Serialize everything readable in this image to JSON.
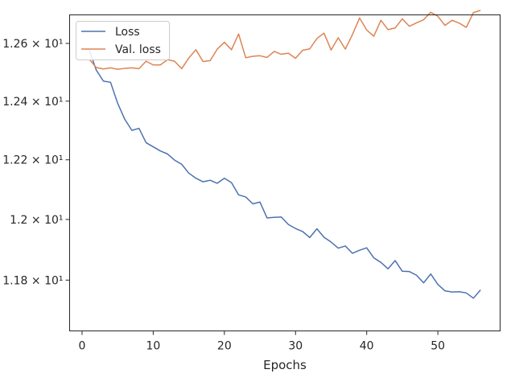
{
  "chart_data": {
    "type": "line",
    "title": "",
    "xlabel": "Epochs",
    "ylabel": "",
    "y_scale": "log",
    "xlim": [
      -1.75,
      58.75
    ],
    "ylim": [
      11.635,
      12.7
    ],
    "grid": false,
    "legend_position": "top-left",
    "x_ticks": [
      {
        "value": 0,
        "label": "0"
      },
      {
        "value": 10,
        "label": "10"
      },
      {
        "value": 20,
        "label": "20"
      },
      {
        "value": 30,
        "label": "30"
      },
      {
        "value": 40,
        "label": "40"
      },
      {
        "value": 50,
        "label": "50"
      }
    ],
    "y_ticks": [
      {
        "value": 11.8,
        "label": "1.18 × 10¹"
      },
      {
        "value": 12.0,
        "label": "1.2 × 10¹"
      },
      {
        "value": 12.2,
        "label": "1.22 × 10¹"
      },
      {
        "value": 12.4,
        "label": "1.24 × 10¹"
      },
      {
        "value": 12.6,
        "label": "1.26 × 10¹"
      }
    ],
    "x": [
      1,
      2,
      3,
      4,
      5,
      6,
      7,
      8,
      9,
      10,
      11,
      12,
      13,
      14,
      15,
      16,
      17,
      18,
      19,
      20,
      21,
      22,
      23,
      24,
      25,
      26,
      27,
      28,
      29,
      30,
      31,
      32,
      33,
      34,
      35,
      36,
      37,
      38,
      39,
      40,
      41,
      42,
      43,
      44,
      45,
      46,
      47,
      48,
      49,
      50,
      51,
      52,
      53,
      54,
      55,
      56
    ],
    "series": [
      {
        "name": "Loss",
        "color": "#4c72b0",
        "values": [
          12.578,
          12.507,
          12.469,
          12.465,
          12.393,
          12.338,
          12.3,
          12.307,
          12.258,
          12.244,
          12.23,
          12.22,
          12.199,
          12.185,
          12.155,
          12.138,
          12.126,
          12.131,
          12.121,
          12.138,
          12.123,
          12.082,
          12.075,
          12.052,
          12.058,
          12.005,
          12.007,
          12.008,
          11.983,
          11.97,
          11.96,
          11.94,
          11.969,
          11.941,
          11.925,
          11.905,
          11.912,
          11.888,
          11.898,
          11.906,
          11.873,
          11.858,
          11.837,
          11.864,
          11.829,
          11.828,
          11.816,
          11.791,
          11.82,
          11.786,
          11.765,
          11.761,
          11.762,
          11.758,
          11.741,
          11.768
        ]
      },
      {
        "name": "Val. loss",
        "color": "#dd8452",
        "values": [
          12.545,
          12.516,
          12.511,
          12.515,
          12.51,
          12.513,
          12.515,
          12.512,
          12.538,
          12.525,
          12.525,
          12.543,
          12.538,
          12.512,
          12.549,
          12.578,
          12.537,
          12.54,
          12.58,
          12.604,
          12.578,
          12.633,
          12.55,
          12.555,
          12.557,
          12.551,
          12.572,
          12.562,
          12.566,
          12.548,
          12.576,
          12.581,
          12.617,
          12.636,
          12.577,
          12.62,
          12.58,
          12.631,
          12.689,
          12.647,
          12.625,
          12.681,
          12.648,
          12.654,
          12.686,
          12.66,
          12.672,
          12.683,
          12.709,
          12.695,
          12.663,
          12.681,
          12.671,
          12.656,
          12.708,
          12.716
        ]
      }
    ]
  }
}
